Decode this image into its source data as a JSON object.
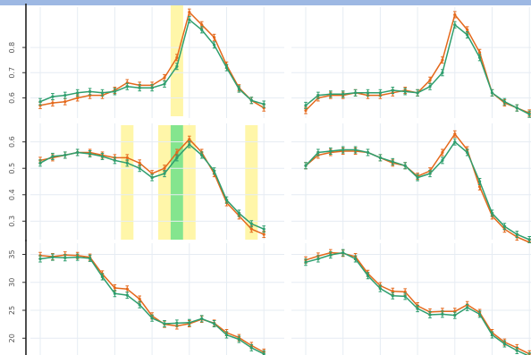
{
  "colors": {
    "orange": "#e4691c",
    "green": "#2e9e6e",
    "highlight_yellow": "#fff59a",
    "highlight_green": "#6fe07a",
    "topbar": "#9db8e3",
    "grid": "#e6ecf3"
  },
  "chart_data": [
    {
      "type": "line",
      "panel": "row1-left",
      "x": [
        1,
        2,
        3,
        4,
        5,
        6,
        7,
        8,
        9,
        10,
        11,
        12,
        13,
        14,
        15,
        16,
        17,
        18,
        19
      ],
      "ylim": [
        0.52,
        0.96
      ],
      "yticks": [
        "0.6",
        "0.7",
        "0.8"
      ],
      "series": [
        {
          "color": "#e4691c",
          "values": [
            0.57,
            0.58,
            0.585,
            0.6,
            0.61,
            0.61,
            0.63,
            0.66,
            0.65,
            0.65,
            0.68,
            0.76,
            0.94,
            0.89,
            0.84,
            0.73,
            0.64,
            0.59,
            0.56
          ]
        },
        {
          "color": "#2e9e6e",
          "values": [
            0.585,
            0.605,
            0.61,
            0.62,
            0.625,
            0.62,
            0.625,
            0.645,
            0.64,
            0.64,
            0.655,
            0.725,
            0.91,
            0.87,
            0.81,
            0.72,
            0.635,
            0.59,
            0.575
          ]
        }
      ],
      "highlights": [
        {
          "x": 12,
          "color": "yellow"
        }
      ]
    },
    {
      "type": "line",
      "panel": "row1-right",
      "x": [
        1,
        2,
        3,
        4,
        5,
        6,
        7,
        8,
        9,
        10,
        11,
        12,
        13,
        14,
        15,
        16,
        17,
        18,
        19
      ],
      "ylim": [
        0.52,
        0.96
      ],
      "series": [
        {
          "color": "#e4691c",
          "values": [
            0.55,
            0.6,
            0.61,
            0.61,
            0.62,
            0.61,
            0.61,
            0.62,
            0.63,
            0.62,
            0.67,
            0.75,
            0.93,
            0.87,
            0.78,
            0.62,
            0.58,
            0.56,
            0.54
          ]
        },
        {
          "color": "#2e9e6e",
          "values": [
            0.57,
            0.61,
            0.615,
            0.615,
            0.62,
            0.62,
            0.62,
            0.63,
            0.625,
            0.62,
            0.645,
            0.7,
            0.89,
            0.85,
            0.76,
            0.62,
            0.585,
            0.56,
            0.535
          ]
        }
      ],
      "highlights": []
    },
    {
      "type": "line",
      "panel": "row2-left",
      "x": [
        1,
        2,
        3,
        4,
        5,
        6,
        7,
        8,
        9,
        10,
        11,
        12,
        13,
        14,
        15,
        16,
        17,
        18,
        19
      ],
      "ylim": [
        0.23,
        0.67
      ],
      "yticks": [
        "0.3",
        "0.4",
        "0.5",
        "0.6"
      ],
      "series": [
        {
          "color": "#e4691c",
          "values": [
            0.53,
            0.54,
            0.55,
            0.56,
            0.56,
            0.55,
            0.54,
            0.54,
            0.52,
            0.48,
            0.5,
            0.56,
            0.61,
            0.56,
            0.48,
            0.37,
            0.32,
            0.27,
            0.25
          ]
        },
        {
          "color": "#2e9e6e",
          "values": [
            0.52,
            0.545,
            0.55,
            0.56,
            0.555,
            0.545,
            0.53,
            0.52,
            0.5,
            0.465,
            0.48,
            0.54,
            0.59,
            0.55,
            0.49,
            0.38,
            0.33,
            0.29,
            0.27
          ]
        }
      ],
      "highlights": [
        {
          "x": 8,
          "color": "yellow"
        },
        {
          "x": 11,
          "color": "yellow"
        },
        {
          "x": 12,
          "color": "green"
        },
        {
          "x": 13,
          "color": "yellow"
        },
        {
          "x": 18,
          "color": "yellow"
        }
      ]
    },
    {
      "type": "line",
      "panel": "row2-right",
      "x": [
        1,
        2,
        3,
        4,
        5,
        6,
        7,
        8,
        9,
        10,
        11,
        12,
        13,
        14,
        15,
        16,
        17,
        18,
        19
      ],
      "ylim": [
        0.23,
        0.67
      ],
      "series": [
        {
          "color": "#e4691c",
          "values": [
            0.51,
            0.55,
            0.56,
            0.565,
            0.565,
            0.56,
            0.54,
            0.52,
            0.51,
            0.47,
            0.49,
            0.56,
            0.63,
            0.57,
            0.43,
            0.32,
            0.27,
            0.24,
            0.22
          ]
        },
        {
          "color": "#2e9e6e",
          "values": [
            0.51,
            0.56,
            0.565,
            0.57,
            0.57,
            0.56,
            0.54,
            0.525,
            0.51,
            0.465,
            0.48,
            0.53,
            0.6,
            0.56,
            0.45,
            0.33,
            0.28,
            0.25,
            0.23
          ]
        }
      ],
      "highlights": []
    },
    {
      "type": "line",
      "panel": "row3-left",
      "x": [
        1,
        2,
        3,
        4,
        5,
        6,
        7,
        8,
        9,
        10,
        11,
        12,
        13,
        14,
        15,
        16,
        17,
        18,
        19
      ],
      "ylim": [
        17,
        37
      ],
      "yticks": [
        "20",
        "25",
        "30",
        "35"
      ],
      "series": [
        {
          "color": "#e4691c",
          "values": [
            34.8,
            34.6,
            34.9,
            34.8,
            34.5,
            31.5,
            29,
            28.8,
            27,
            24,
            22.5,
            22.2,
            22.6,
            23.4,
            22.7,
            21,
            20.1,
            18.7,
            17.5
          ]
        },
        {
          "color": "#2e9e6e",
          "values": [
            34.2,
            34.5,
            34.4,
            34.5,
            34.3,
            31,
            28,
            27.7,
            26,
            23.6,
            22.6,
            22.7,
            22.8,
            23.5,
            22.6,
            20.6,
            19.8,
            18.3,
            17.2
          ]
        }
      ],
      "highlights": []
    },
    {
      "type": "line",
      "panel": "row3-right",
      "x": [
        1,
        2,
        3,
        4,
        5,
        6,
        7,
        8,
        9,
        10,
        11,
        12,
        13,
        14,
        15,
        16,
        17,
        18,
        19
      ],
      "ylim": [
        17,
        37
      ],
      "series": [
        {
          "color": "#e4691c",
          "values": [
            34,
            34.7,
            35.3,
            35.2,
            34.6,
            31.6,
            29.4,
            28.4,
            28.3,
            25.8,
            24.7,
            24.8,
            24.8,
            26,
            24.6,
            21,
            19.3,
            18.3,
            17.2
          ]
        },
        {
          "color": "#2e9e6e",
          "values": [
            33.6,
            34.2,
            34.9,
            35.3,
            34.2,
            31.2,
            28.9,
            27.6,
            27.5,
            25.3,
            24.2,
            24.3,
            24.1,
            25.5,
            24.3,
            20.6,
            19,
            17.8,
            16.8
          ]
        }
      ],
      "highlights": []
    }
  ]
}
